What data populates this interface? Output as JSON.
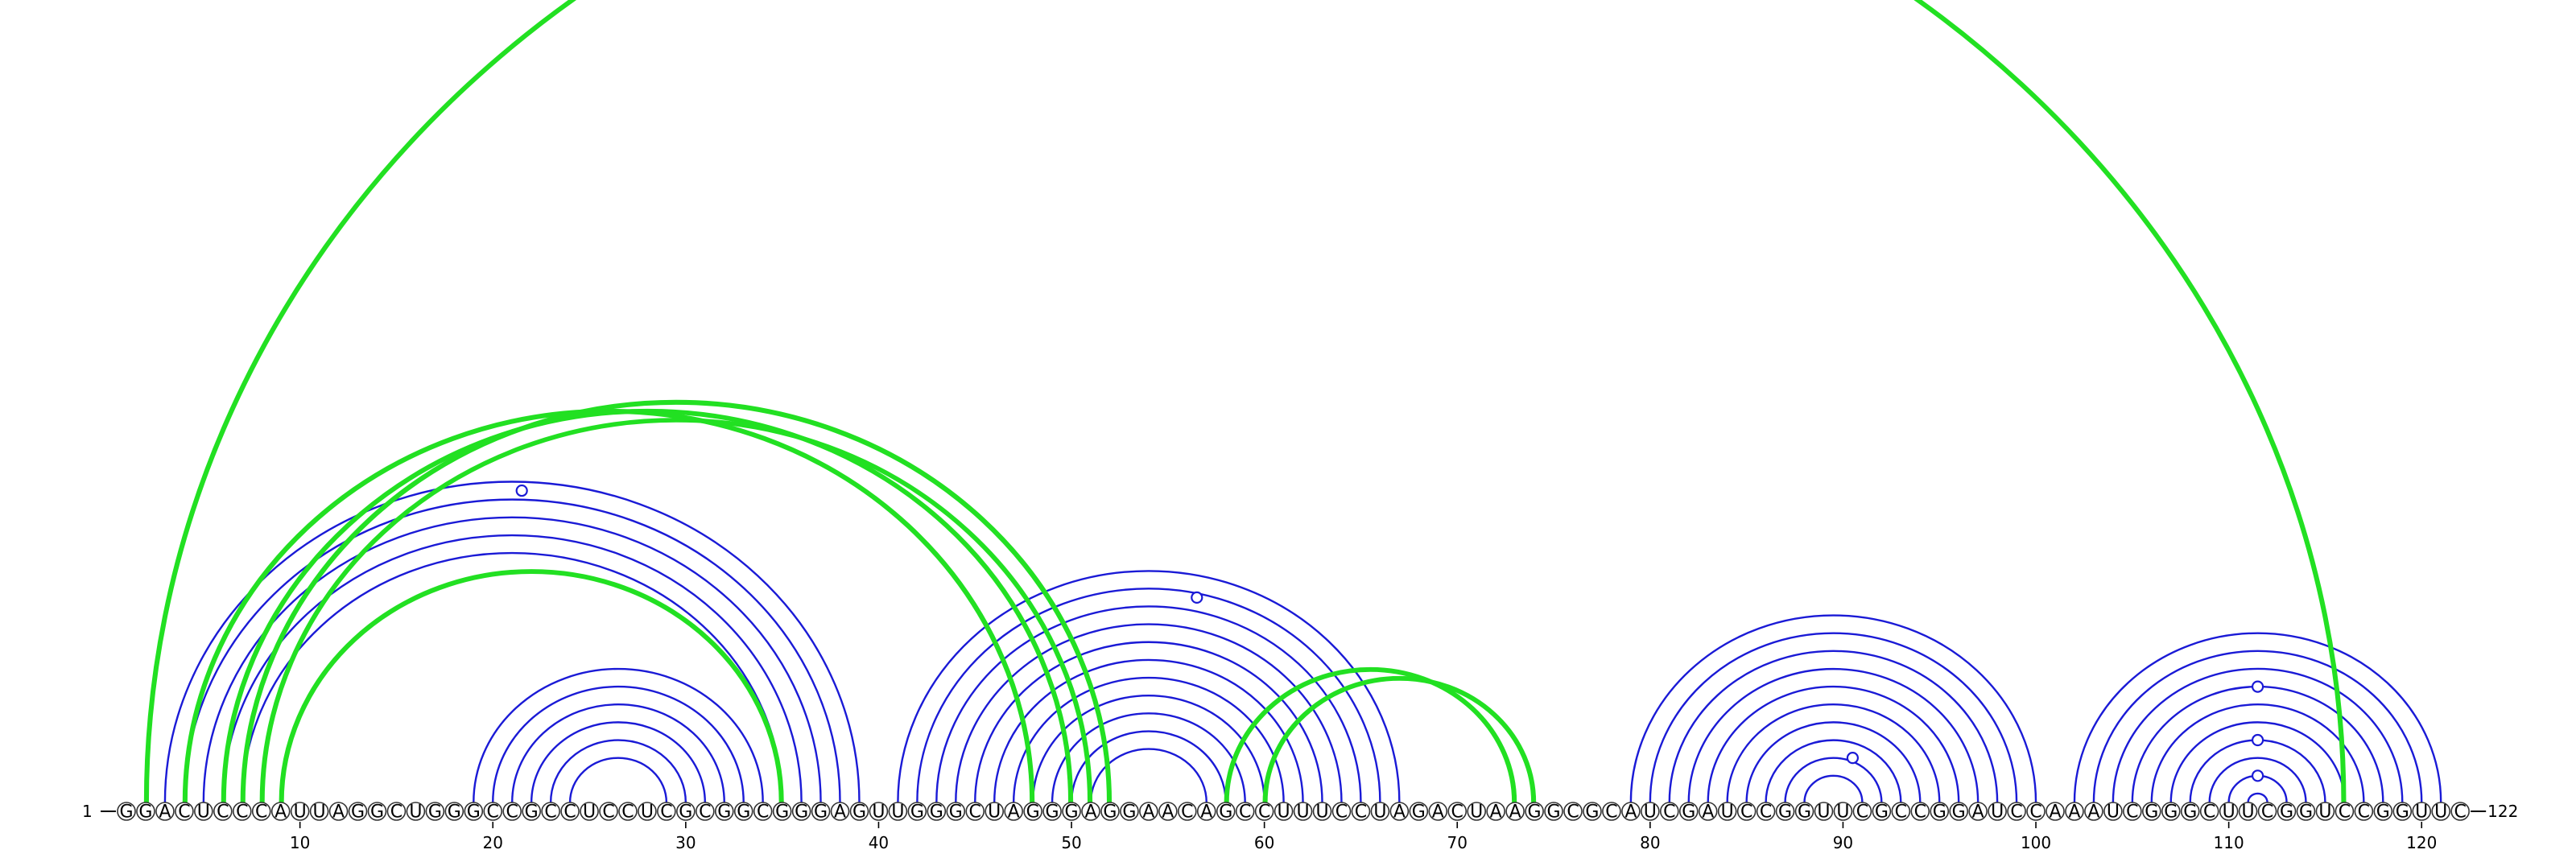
{
  "sequence": "GGACUCCCAUUAGGCUGGGCCGCCUCCUCGCGGCGGGAGUUGGGCUAGGGAGGAACAGCCUUUCCUAGACUAAGGCGCAUCGAUCCGGUUCGCCGGAUCCAAAUCGGGCUUCGGUCCGGUUC",
  "start_label": "1",
  "end_label": "122",
  "tick_positions": [
    10,
    20,
    30,
    40,
    50,
    60,
    70,
    80,
    90,
    100,
    110,
    120
  ],
  "colors": {
    "blue": "#1a1ad6",
    "green": "#22e022"
  },
  "chart_data": {
    "type": "arc-diagram",
    "length": 122,
    "blue_pairs": [
      [
        3,
        39
      ],
      [
        4,
        38
      ],
      [
        5,
        37
      ],
      [
        6,
        36
      ],
      [
        7,
        35
      ],
      [
        19,
        34
      ],
      [
        20,
        33
      ],
      [
        21,
        32
      ],
      [
        22,
        31
      ],
      [
        23,
        30
      ],
      [
        24,
        29
      ],
      [
        41,
        67
      ],
      [
        42,
        66
      ],
      [
        43,
        65
      ],
      [
        44,
        64
      ],
      [
        45,
        63
      ],
      [
        46,
        62
      ],
      [
        47,
        61
      ],
      [
        48,
        60
      ],
      [
        49,
        59
      ],
      [
        50,
        58
      ],
      [
        51,
        57
      ],
      [
        79,
        100
      ],
      [
        80,
        99
      ],
      [
        81,
        98
      ],
      [
        82,
        97
      ],
      [
        83,
        96
      ],
      [
        84,
        95
      ],
      [
        85,
        94
      ],
      [
        86,
        93
      ],
      [
        87,
        92
      ],
      [
        88,
        91
      ],
      [
        102,
        121
      ],
      [
        103,
        120
      ],
      [
        104,
        119
      ],
      [
        105,
        118
      ],
      [
        106,
        117
      ],
      [
        107,
        116
      ],
      [
        108,
        115
      ],
      [
        109,
        114
      ],
      [
        110,
        113
      ],
      [
        111,
        112
      ]
    ],
    "green_pairs": [
      [
        2,
        116
      ],
      [
        4,
        48
      ],
      [
        6,
        50
      ],
      [
        7,
        52
      ],
      [
        8,
        51
      ],
      [
        9,
        35
      ],
      [
        58,
        73
      ],
      [
        60,
        74
      ]
    ],
    "markers": [
      {
        "position": 21.5,
        "pair_span": [
          4,
          39
        ]
      },
      {
        "position": 56.5,
        "pair_span": [
          45,
          68
        ]
      },
      {
        "position": 90.5,
        "pair_span": [
          88,
          93
        ]
      },
      {
        "position": 111.5,
        "pair_span": [
          105,
          118
        ]
      },
      {
        "position": 111.5,
        "pair_span": [
          108,
          115
        ]
      },
      {
        "position": 111.5,
        "pair_span": [
          110,
          113
        ]
      }
    ]
  }
}
